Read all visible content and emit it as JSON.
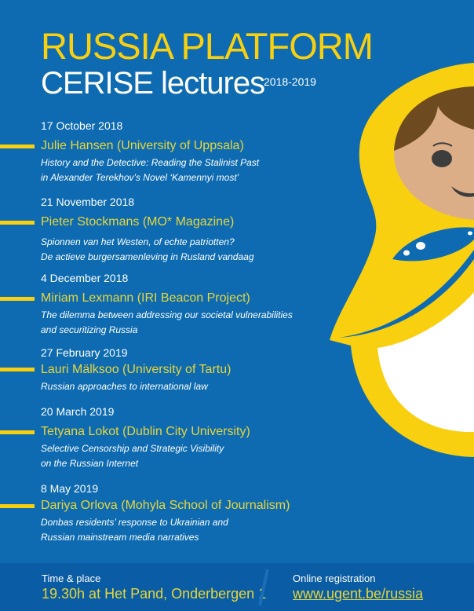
{
  "header": {
    "title": "RUSSIA PLATFORM",
    "subtitle": "CERISE lectures",
    "years": "2018-2019"
  },
  "lectures": [
    {
      "date": "17 October 2018",
      "speaker": "Julie Hansen (University of Uppsala)",
      "desc": [
        "History and the Detective: Reading the Stalinist Past",
        "in Alexander Terekhov’s Novel ‘Kamennyi most’"
      ]
    },
    {
      "date": "21 November 2018",
      "speaker": "Pieter Stockmans (MO* Magazine)",
      "desc": [
        "Spionnen van het Westen, of echte patriotten?",
        "De actieve burgersamenleving in Rusland vandaag"
      ]
    },
    {
      "date": "4 December 2018",
      "speaker": "Miriam Lexmann (IRI Beacon Project)",
      "desc": [
        "The dilemma between addressing our societal vulnerabilities",
        "and securitizing Russia"
      ]
    },
    {
      "date": "27 February 2019",
      "speaker": "Lauri Mälksoo (University of Tartu)",
      "desc": [
        "Russian approaches to international law"
      ]
    },
    {
      "date": "20 March 2019",
      "speaker": "Tetyana Lokot (Dublin City University)",
      "desc": [
        "Selective Censorship and Strategic Visibility",
        "on the Russian Internet"
      ]
    },
    {
      "date": "8 May 2019",
      "speaker": "Dariya Orlova (Mohyla School of Journalism)",
      "desc": [
        "Donbas residents’ response to Ukrainian and",
        "Russian mainstream media narratives"
      ]
    }
  ],
  "footer": {
    "time_label": "Time & place",
    "time_value": "19.30h at Het Pand, Onderbergen 1",
    "reg_label": "Online registration",
    "reg_link": "www.ugent.be/russia"
  },
  "colors": {
    "background": "#0e6bb1",
    "accent": "#f8d00f",
    "footer": "#0a5ca4"
  },
  "illustration": "matryoshka-doll"
}
